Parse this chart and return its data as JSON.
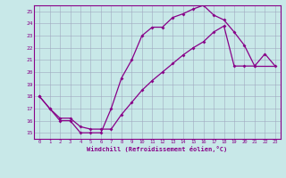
{
  "xlabel": "Windchill (Refroidissement éolien,°C)",
  "bg_color": "#c8e8e8",
  "line_color": "#880088",
  "grid_color": "#a0a8c0",
  "xlim": [
    -0.5,
    23.5
  ],
  "ylim": [
    14.5,
    25.5
  ],
  "yticks": [
    15,
    16,
    17,
    18,
    19,
    20,
    21,
    22,
    23,
    24,
    25
  ],
  "xticks": [
    0,
    1,
    2,
    3,
    4,
    5,
    6,
    7,
    8,
    9,
    10,
    11,
    12,
    13,
    14,
    15,
    16,
    17,
    18,
    19,
    20,
    21,
    22,
    23
  ],
  "upper_x": [
    0,
    1,
    2,
    3,
    4,
    5,
    6,
    7,
    8,
    9,
    10,
    11,
    12,
    13,
    14,
    15,
    16,
    17,
    18,
    19,
    20,
    21
  ],
  "upper_y": [
    18,
    17,
    16,
    16,
    15,
    15,
    15,
    17,
    19.5,
    21,
    23,
    23.7,
    23.7,
    24.5,
    24.8,
    25.2,
    25.5,
    24.7,
    24.3,
    23.3,
    22.2,
    20.5
  ],
  "lower_x": [
    0,
    1,
    2,
    3,
    4,
    5,
    6,
    7,
    8,
    9,
    10,
    11,
    12,
    13,
    14,
    15,
    16,
    17,
    18,
    19,
    20,
    21,
    22,
    23
  ],
  "lower_y": [
    18,
    17,
    16.2,
    16.2,
    15.5,
    15.3,
    15.3,
    15.3,
    16.5,
    17.5,
    18.5,
    19.3,
    20.0,
    20.7,
    21.4,
    22.0,
    22.5,
    23.3,
    23.8,
    20.5,
    20.5,
    20.5,
    21.5,
    20.5
  ]
}
